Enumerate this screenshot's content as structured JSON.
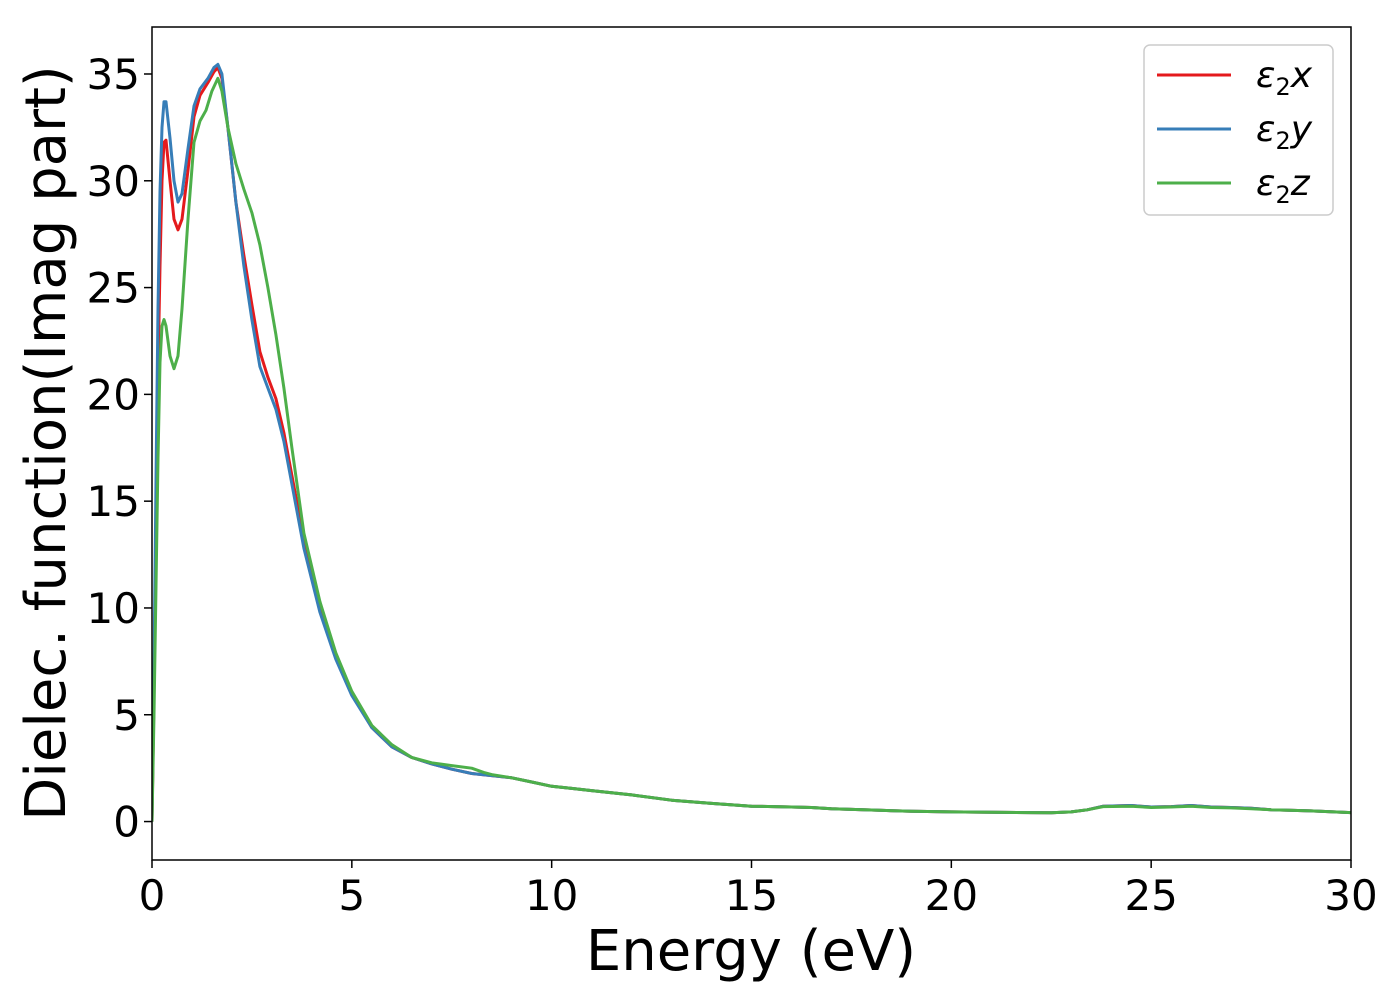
{
  "chart_data": {
    "type": "line",
    "xlabel": "Energy (eV)",
    "ylabel": "Dielec. function(Imag part)",
    "xlim": [
      0,
      30
    ],
    "ylim": [
      -1.8,
      37.2
    ],
    "x_ticks": [
      0,
      5,
      10,
      15,
      20,
      25,
      30
    ],
    "y_ticks": [
      0,
      5,
      10,
      15,
      20,
      25,
      30,
      35
    ],
    "grid": false,
    "legend_position": "top-right",
    "series": [
      {
        "name": "ε2x",
        "legend_symbol": "ε",
        "legend_subscript": "2",
        "legend_suffix": "x",
        "color": "#e41a1c",
        "points": [
          [
            0,
            0
          ],
          [
            0.05,
            6
          ],
          [
            0.1,
            14
          ],
          [
            0.15,
            21
          ],
          [
            0.2,
            26
          ],
          [
            0.25,
            30
          ],
          [
            0.3,
            31.8
          ],
          [
            0.35,
            31.9
          ],
          [
            0.45,
            30
          ],
          [
            0.55,
            28.2
          ],
          [
            0.65,
            27.7
          ],
          [
            0.75,
            28.2
          ],
          [
            0.9,
            30.5
          ],
          [
            1.05,
            33
          ],
          [
            1.2,
            34
          ],
          [
            1.4,
            34.6
          ],
          [
            1.55,
            35.1
          ],
          [
            1.65,
            35.3
          ],
          [
            1.75,
            34.8
          ],
          [
            1.9,
            32.5
          ],
          [
            2.1,
            29
          ],
          [
            2.3,
            26.5
          ],
          [
            2.5,
            24.2
          ],
          [
            2.7,
            22
          ],
          [
            2.9,
            20.8
          ],
          [
            3.1,
            19.8
          ],
          [
            3.3,
            18.2
          ],
          [
            3.5,
            16.2
          ],
          [
            3.8,
            13.2
          ],
          [
            4.2,
            10
          ],
          [
            4.6,
            7.8
          ],
          [
            5,
            6
          ],
          [
            5.5,
            4.4
          ],
          [
            6,
            3.5
          ],
          [
            6.5,
            3
          ],
          [
            7,
            2.7
          ],
          [
            7.5,
            2.45
          ],
          [
            8,
            2.25
          ],
          [
            8.5,
            2.15
          ],
          [
            9,
            2.05
          ],
          [
            9.5,
            1.85
          ],
          [
            10,
            1.65
          ],
          [
            10.5,
            1.55
          ],
          [
            11,
            1.45
          ],
          [
            12,
            1.25
          ],
          [
            13,
            1.0
          ],
          [
            14,
            0.85
          ],
          [
            15,
            0.72
          ],
          [
            16,
            0.68
          ],
          [
            16.5,
            0.66
          ],
          [
            17,
            0.6
          ],
          [
            18,
            0.54
          ],
          [
            19,
            0.48
          ],
          [
            20,
            0.45
          ],
          [
            21,
            0.44
          ],
          [
            22,
            0.42
          ],
          [
            22.5,
            0.41
          ],
          [
            23,
            0.45
          ],
          [
            23.4,
            0.55
          ],
          [
            23.8,
            0.72
          ],
          [
            24.5,
            0.75
          ],
          [
            25,
            0.68
          ],
          [
            25.5,
            0.7
          ],
          [
            26,
            0.75
          ],
          [
            26.5,
            0.68
          ],
          [
            27,
            0.66
          ],
          [
            27.5,
            0.62
          ],
          [
            28,
            0.55
          ],
          [
            29,
            0.5
          ],
          [
            30,
            0.42
          ]
        ]
      },
      {
        "name": "ε2y",
        "legend_symbol": "ε",
        "legend_subscript": "2",
        "legend_suffix": "y",
        "color": "#377eb8",
        "points": [
          [
            0,
            0
          ],
          [
            0.05,
            7
          ],
          [
            0.1,
            16
          ],
          [
            0.15,
            24
          ],
          [
            0.2,
            29.5
          ],
          [
            0.25,
            32.5
          ],
          [
            0.3,
            33.7
          ],
          [
            0.35,
            33.7
          ],
          [
            0.45,
            32
          ],
          [
            0.55,
            30
          ],
          [
            0.65,
            29
          ],
          [
            0.75,
            29.4
          ],
          [
            0.9,
            31.5
          ],
          [
            1.05,
            33.5
          ],
          [
            1.2,
            34.3
          ],
          [
            1.4,
            34.8
          ],
          [
            1.55,
            35.3
          ],
          [
            1.65,
            35.45
          ],
          [
            1.75,
            35
          ],
          [
            1.9,
            32.5
          ],
          [
            2.1,
            29
          ],
          [
            2.3,
            26
          ],
          [
            2.5,
            23.5
          ],
          [
            2.7,
            21.3
          ],
          [
            2.9,
            20.3
          ],
          [
            3.1,
            19.3
          ],
          [
            3.3,
            17.8
          ],
          [
            3.5,
            15.8
          ],
          [
            3.8,
            12.8
          ],
          [
            4.2,
            9.8
          ],
          [
            4.6,
            7.6
          ],
          [
            5,
            5.9
          ],
          [
            5.5,
            4.4
          ],
          [
            6,
            3.5
          ],
          [
            6.5,
            3
          ],
          [
            7,
            2.7
          ],
          [
            7.5,
            2.45
          ],
          [
            8,
            2.25
          ],
          [
            8.5,
            2.15
          ],
          [
            9,
            2.05
          ],
          [
            9.5,
            1.85
          ],
          [
            10,
            1.65
          ],
          [
            10.5,
            1.55
          ],
          [
            11,
            1.45
          ],
          [
            12,
            1.25
          ],
          [
            13,
            1.0
          ],
          [
            14,
            0.85
          ],
          [
            15,
            0.72
          ],
          [
            16,
            0.68
          ],
          [
            16.5,
            0.66
          ],
          [
            17,
            0.6
          ],
          [
            18,
            0.54
          ],
          [
            19,
            0.48
          ],
          [
            20,
            0.45
          ],
          [
            21,
            0.44
          ],
          [
            22,
            0.42
          ],
          [
            22.5,
            0.41
          ],
          [
            23,
            0.45
          ],
          [
            23.4,
            0.55
          ],
          [
            23.8,
            0.72
          ],
          [
            24.5,
            0.75
          ],
          [
            25,
            0.68
          ],
          [
            25.5,
            0.7
          ],
          [
            26,
            0.75
          ],
          [
            26.5,
            0.68
          ],
          [
            27,
            0.66
          ],
          [
            27.5,
            0.62
          ],
          [
            28,
            0.55
          ],
          [
            29,
            0.5
          ],
          [
            30,
            0.42
          ]
        ]
      },
      {
        "name": "ε2z",
        "legend_symbol": "ε",
        "legend_subscript": "2",
        "legend_suffix": "z",
        "color": "#4daf4a",
        "points": [
          [
            0,
            0
          ],
          [
            0.05,
            5
          ],
          [
            0.1,
            11
          ],
          [
            0.15,
            17
          ],
          [
            0.2,
            21.5
          ],
          [
            0.25,
            23.2
          ],
          [
            0.3,
            23.5
          ],
          [
            0.35,
            23.2
          ],
          [
            0.45,
            21.8
          ],
          [
            0.55,
            21.2
          ],
          [
            0.65,
            21.8
          ],
          [
            0.75,
            24
          ],
          [
            0.9,
            28.2
          ],
          [
            1.05,
            31.8
          ],
          [
            1.2,
            32.8
          ],
          [
            1.35,
            33.3
          ],
          [
            1.5,
            34.2
          ],
          [
            1.65,
            34.8
          ],
          [
            1.75,
            34.2
          ],
          [
            1.9,
            32.5
          ],
          [
            2.1,
            30.8
          ],
          [
            2.3,
            29.6
          ],
          [
            2.5,
            28.5
          ],
          [
            2.7,
            27
          ],
          [
            2.9,
            25
          ],
          [
            3.1,
            22.8
          ],
          [
            3.3,
            20.3
          ],
          [
            3.5,
            17.5
          ],
          [
            3.8,
            13.5
          ],
          [
            4.2,
            10.3
          ],
          [
            4.6,
            7.9
          ],
          [
            5,
            6.1
          ],
          [
            5.5,
            4.5
          ],
          [
            6,
            3.6
          ],
          [
            6.5,
            3
          ],
          [
            7,
            2.75
          ],
          [
            7.5,
            2.62
          ],
          [
            8,
            2.5
          ],
          [
            8.3,
            2.3
          ],
          [
            8.5,
            2.2
          ],
          [
            9,
            2.05
          ],
          [
            9.5,
            1.85
          ],
          [
            10,
            1.65
          ],
          [
            10.5,
            1.55
          ],
          [
            11,
            1.45
          ],
          [
            12,
            1.25
          ],
          [
            13,
            1.0
          ],
          [
            14,
            0.85
          ],
          [
            15,
            0.72
          ],
          [
            16,
            0.68
          ],
          [
            16.5,
            0.66
          ],
          [
            17,
            0.6
          ],
          [
            18,
            0.54
          ],
          [
            19,
            0.48
          ],
          [
            20,
            0.45
          ],
          [
            21,
            0.44
          ],
          [
            22,
            0.42
          ],
          [
            22.5,
            0.41
          ],
          [
            23,
            0.45
          ],
          [
            23.4,
            0.55
          ],
          [
            23.8,
            0.7
          ],
          [
            24.5,
            0.72
          ],
          [
            25,
            0.66
          ],
          [
            25.5,
            0.68
          ],
          [
            26,
            0.72
          ],
          [
            26.5,
            0.66
          ],
          [
            27,
            0.64
          ],
          [
            27.5,
            0.6
          ],
          [
            28,
            0.55
          ],
          [
            29,
            0.5
          ],
          [
            30,
            0.42
          ]
        ]
      }
    ]
  }
}
